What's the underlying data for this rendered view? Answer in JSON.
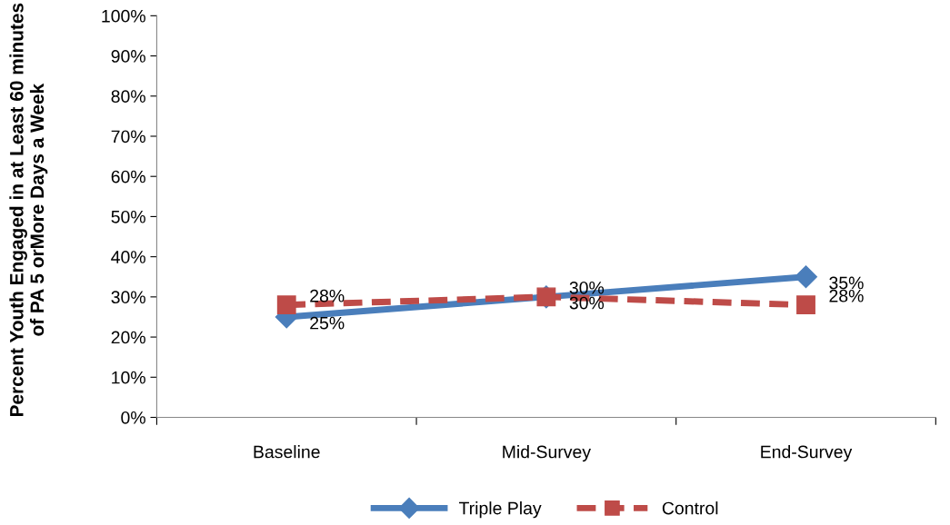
{
  "chart_data": {
    "type": "line",
    "ylabel": "Percent Youth Engaged in at Least 60 minutes of PA 5 orMore Days a Week",
    "categories": [
      "Baseline",
      "Mid-Survey",
      "End-Survey"
    ],
    "series": [
      {
        "name": "Triple Play",
        "color": "#4a7ebb",
        "values": [
          25,
          30,
          35
        ],
        "value_labels": [
          "25%",
          "30%",
          "35%"
        ],
        "marker": "diamond",
        "line_style": "solid"
      },
      {
        "name": "Control",
        "color": "#be4b48",
        "values": [
          28,
          30,
          28
        ],
        "value_labels": [
          "28%",
          "30%",
          "28%"
        ],
        "marker": "square",
        "line_style": "dashed"
      }
    ],
    "ylim": [
      0,
      100
    ],
    "yticks": [
      {
        "value": 0,
        "label": "0%"
      },
      {
        "value": 10,
        "label": "10%"
      },
      {
        "value": 20,
        "label": "20%"
      },
      {
        "value": 30,
        "label": "30%"
      },
      {
        "value": 40,
        "label": "40%"
      },
      {
        "value": 50,
        "label": "50%"
      },
      {
        "value": 60,
        "label": "60%"
      },
      {
        "value": 70,
        "label": "70%"
      },
      {
        "value": 80,
        "label": "80%"
      },
      {
        "value": 90,
        "label": "90%"
      },
      {
        "value": 100,
        "label": "100%"
      }
    ],
    "grid": false,
    "legend": "bottom"
  }
}
